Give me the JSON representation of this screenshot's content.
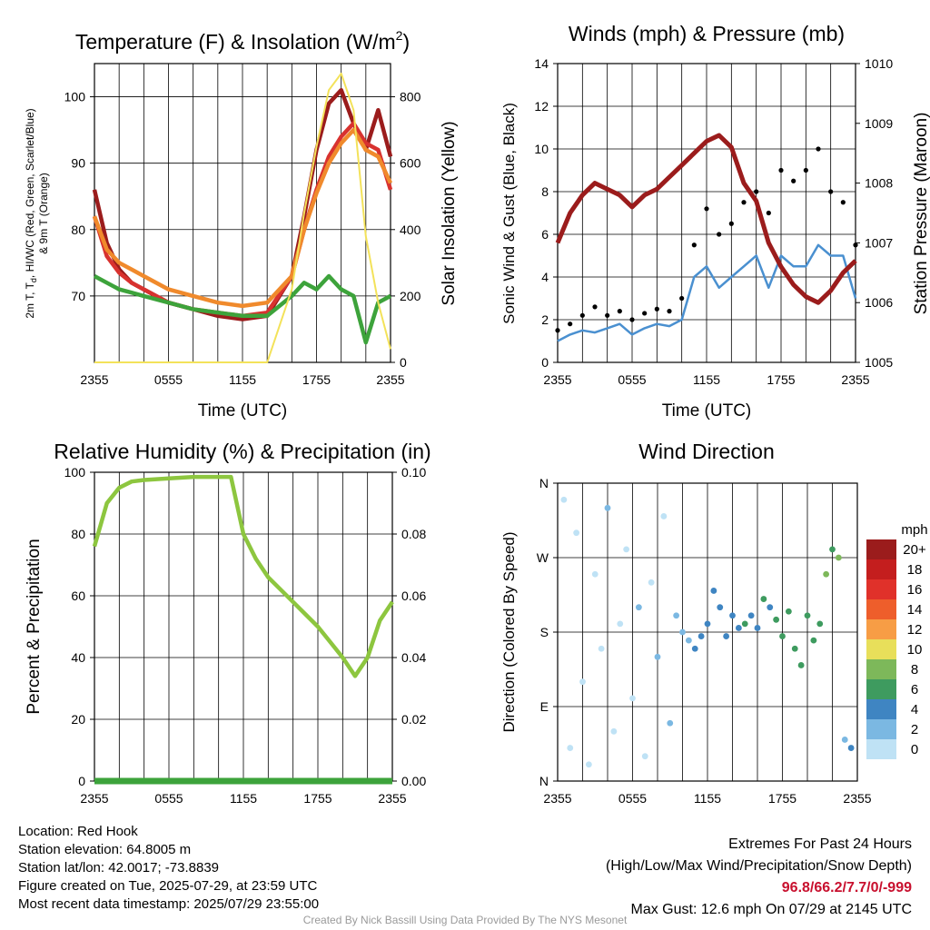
{
  "panels": {
    "temp": {
      "title": "Temperature (F) & Insolation (W/m",
      "title_sup": "2",
      "title_end": ")",
      "ylabel_left_1": "2m T, T",
      "ylabel_left_sub": "d",
      "ylabel_left_2": ", HI/WC (Red, Green, Scarlet/Blue)",
      "ylabel_left_3": "& 9m T (Orange)",
      "ylabel_right": "Solar Insolation (Yellow)",
      "xlabel": "Time (UTC)"
    },
    "wind": {
      "title": "Winds (mph) & Pressure (mb)",
      "ylabel_left": "Sonic Wind & Gust (Blue, Black)",
      "ylabel_right": "Station Pressure (Maroon)",
      "xlabel": "Time (UTC)"
    },
    "rh": {
      "title": "Relative Humidity (%) & Precipitation (in)",
      "ylabel_left": "Percent & Precipitation"
    },
    "dir": {
      "title": "Wind Direction",
      "ylabel_left": "Direction (Colored By Speed)",
      "colorbar_unit": "mph",
      "colorbar_labels": [
        "20+",
        "18",
        "16",
        "14",
        "12",
        "10",
        "8",
        "6",
        "4",
        "2",
        "0"
      ],
      "colorbar_colors": [
        "#9b1c1c",
        "#c41e1e",
        "#e0312a",
        "#ee5e2b",
        "#f79d45",
        "#e8df5a",
        "#7db85a",
        "#3e9b5f",
        "#3f85c2",
        "#7bb8e2",
        "#bfe2f5"
      ]
    }
  },
  "chart_data": [
    {
      "id": "temp",
      "type": "line",
      "xticks": [
        "2355",
        "0555",
        "1155",
        "1755",
        "2355"
      ],
      "ylim_left": [
        60,
        105
      ],
      "yticks_left": [
        70,
        80,
        90,
        100
      ],
      "ylim_right": [
        0,
        900
      ],
      "yticks_right": [
        0,
        200,
        400,
        600,
        800
      ],
      "x": [
        0,
        1,
        2,
        3,
        4,
        6,
        8,
        10,
        12,
        14,
        16,
        17,
        18,
        19,
        20,
        21,
        22,
        23,
        24
      ],
      "series": [
        {
          "color": "#9b1c1c",
          "axis": "left",
          "values": [
            86,
            78,
            74,
            72,
            71,
            69,
            68,
            67,
            66.5,
            67,
            73,
            82,
            92,
            99,
            101,
            96,
            92,
            98,
            91
          ]
        },
        {
          "color": "#d8322f",
          "axis": "left",
          "values": [
            82,
            76,
            73.5,
            72,
            71,
            69,
            68,
            67.5,
            67,
            67.5,
            73,
            80,
            86,
            91,
            94,
            96,
            93,
            92,
            86
          ]
        },
        {
          "color": "#f08a2c",
          "axis": "left",
          "values": [
            82,
            77,
            75,
            74,
            73,
            71,
            70,
            69,
            68.5,
            69,
            73,
            80,
            85.5,
            90,
            93,
            95,
            92,
            91,
            87
          ]
        },
        {
          "color": "#3da33b",
          "axis": "left",
          "values": [
            73,
            72,
            71,
            70.5,
            70,
            69,
            68,
            67.5,
            67,
            67,
            70,
            72,
            71,
            73,
            71,
            70,
            63,
            69,
            70
          ]
        },
        {
          "color": "#f3e25a",
          "axis": "right",
          "values": [
            0,
            0,
            0,
            0,
            0,
            0,
            0,
            0,
            0,
            0,
            220,
            450,
            650,
            820,
            870,
            760,
            380,
            180,
            40
          ]
        }
      ]
    },
    {
      "id": "wind",
      "type": "line",
      "xticks": [
        "2355",
        "0555",
        "1155",
        "1755",
        "2355"
      ],
      "ylim_left": [
        0,
        14
      ],
      "yticks_left": [
        0,
        2,
        4,
        6,
        8,
        10,
        12,
        14
      ],
      "ylim_right": [
        1005,
        1010
      ],
      "yticks_right": [
        1005,
        1006,
        1007,
        1008,
        1009,
        1010
      ],
      "x": [
        0,
        1,
        2,
        3,
        4,
        5,
        6,
        7,
        8,
        9,
        10,
        11,
        12,
        13,
        14,
        15,
        16,
        17,
        18,
        19,
        20,
        21,
        22,
        23,
        24
      ],
      "series": [
        {
          "color": "#4a90d0",
          "axis": "left",
          "values": [
            1,
            1.3,
            1.5,
            1.4,
            1.6,
            1.8,
            1.3,
            1.6,
            1.8,
            1.7,
            2,
            4,
            4.5,
            3.5,
            4,
            4.5,
            5,
            3.5,
            5,
            4.5,
            4.5,
            5.5,
            5,
            5,
            3
          ]
        },
        {
          "color": "#000000",
          "axis": "left",
          "type": "scatter",
          "values": [
            1.5,
            1.8,
            2.2,
            2.6,
            2.2,
            2.4,
            2,
            2.3,
            2.5,
            2.4,
            3,
            5.5,
            7.2,
            6,
            6.5,
            7.5,
            8,
            7,
            9,
            8.5,
            9,
            10,
            8,
            7.5,
            5.5
          ]
        },
        {
          "color": "#9b1c1c",
          "axis": "right",
          "values": [
            1007.0,
            1007.5,
            1007.8,
            1008.0,
            1007.9,
            1007.8,
            1007.6,
            1007.8,
            1007.9,
            1008.1,
            1008.3,
            1008.5,
            1008.7,
            1008.8,
            1008.6,
            1008.0,
            1007.7,
            1007.0,
            1006.6,
            1006.3,
            1006.1,
            1006.0,
            1006.2,
            1006.5,
            1006.7
          ]
        }
      ]
    },
    {
      "id": "rh",
      "type": "line",
      "xticks": [
        "2355",
        "0555",
        "1155",
        "1755",
        "2355"
      ],
      "ylim_left": [
        0,
        100
      ],
      "yticks_left": [
        0,
        20,
        40,
        60,
        80,
        100
      ],
      "ylim_right": [
        0,
        0.1
      ],
      "yticks_right": [
        "0.00",
        "0.02",
        "0.04",
        "0.06",
        "0.08",
        "0.10"
      ],
      "x": [
        0,
        1,
        2,
        3,
        4,
        6,
        8,
        10,
        11,
        12,
        13,
        14,
        15,
        16,
        17,
        18,
        19,
        20,
        21,
        22,
        23,
        24
      ],
      "series": [
        {
          "color": "#8dc63f",
          "axis": "left",
          "values": [
            76,
            90,
            95,
            97,
            97.5,
            98,
            98.5,
            98.5,
            98.5,
            80,
            72,
            66,
            62,
            58,
            54,
            50,
            45,
            40,
            34,
            40,
            52,
            58
          ]
        },
        {
          "color": "#3da33b",
          "axis": "right",
          "values": [
            0,
            0,
            0,
            0,
            0,
            0,
            0,
            0,
            0,
            0,
            0,
            0,
            0,
            0,
            0,
            0,
            0,
            0,
            0,
            0,
            0,
            0
          ]
        }
      ]
    },
    {
      "id": "dir",
      "type": "scatter",
      "xticks": [
        "2355",
        "0555",
        "1155",
        "1755",
        "2355"
      ],
      "yticks": [
        "N",
        "E",
        "S",
        "W",
        "N"
      ],
      "ylim": [
        0,
        360
      ],
      "x": [
        0.5,
        1,
        1.5,
        2,
        2.5,
        3,
        3.5,
        4,
        4.5,
        5,
        5.5,
        6,
        6.5,
        7,
        7.5,
        8,
        8.5,
        9,
        9.5,
        10,
        10.5,
        11,
        11.5,
        12,
        12.5,
        13,
        13.5,
        14,
        14.5,
        15,
        15.5,
        16,
        16.5,
        17,
        17.5,
        18,
        18.5,
        19,
        19.5,
        20,
        20.5,
        21,
        21.5,
        22,
        22.5,
        23,
        23.5
      ],
      "values": [
        340,
        40,
        300,
        120,
        20,
        250,
        160,
        330,
        60,
        190,
        280,
        100,
        210,
        30,
        240,
        150,
        320,
        70,
        200,
        180,
        170,
        160,
        175,
        190,
        230,
        210,
        175,
        200,
        185,
        190,
        200,
        185,
        220,
        210,
        195,
        175,
        205,
        160,
        140,
        200,
        170,
        190,
        250,
        280,
        270,
        50,
        40
      ],
      "speeds": [
        1,
        0.5,
        1,
        1,
        0.5,
        1.5,
        1,
        2,
        1,
        1,
        1.5,
        1,
        2,
        1,
        1.5,
        2,
        1.5,
        2,
        2.5,
        3,
        3,
        4,
        4,
        4.5,
        4,
        5,
        4.5,
        5,
        5.5,
        6,
        5,
        5.5,
        6,
        5.5,
        6.5,
        7,
        6,
        7,
        6.5,
        6,
        7,
        7.5,
        8,
        7.5,
        8,
        3.5,
        4
      ]
    }
  ],
  "info": {
    "location": "Location: Red Hook",
    "elevation": "Station elevation: 64.8005 m",
    "latlon": "Station lat/lon: 42.0017; -73.8839",
    "created": "Figure created on Tue, 2025-07-29, at 23:59 UTC",
    "recent": "Most recent data timestamp: 2025/07/29 23:55:00",
    "extremes_title": "Extremes For Past 24 Hours",
    "extremes_desc": "(High/Low/Max Wind/Precipitation/Snow Depth)",
    "extremes_values": "96.8/66.2/7.7/0/-999",
    "max_gust": "Max Gust: 12.6 mph On 07/29 at 2145 UTC",
    "credit": "Created By Nick Bassill Using Data Provided By The NYS Mesonet"
  }
}
